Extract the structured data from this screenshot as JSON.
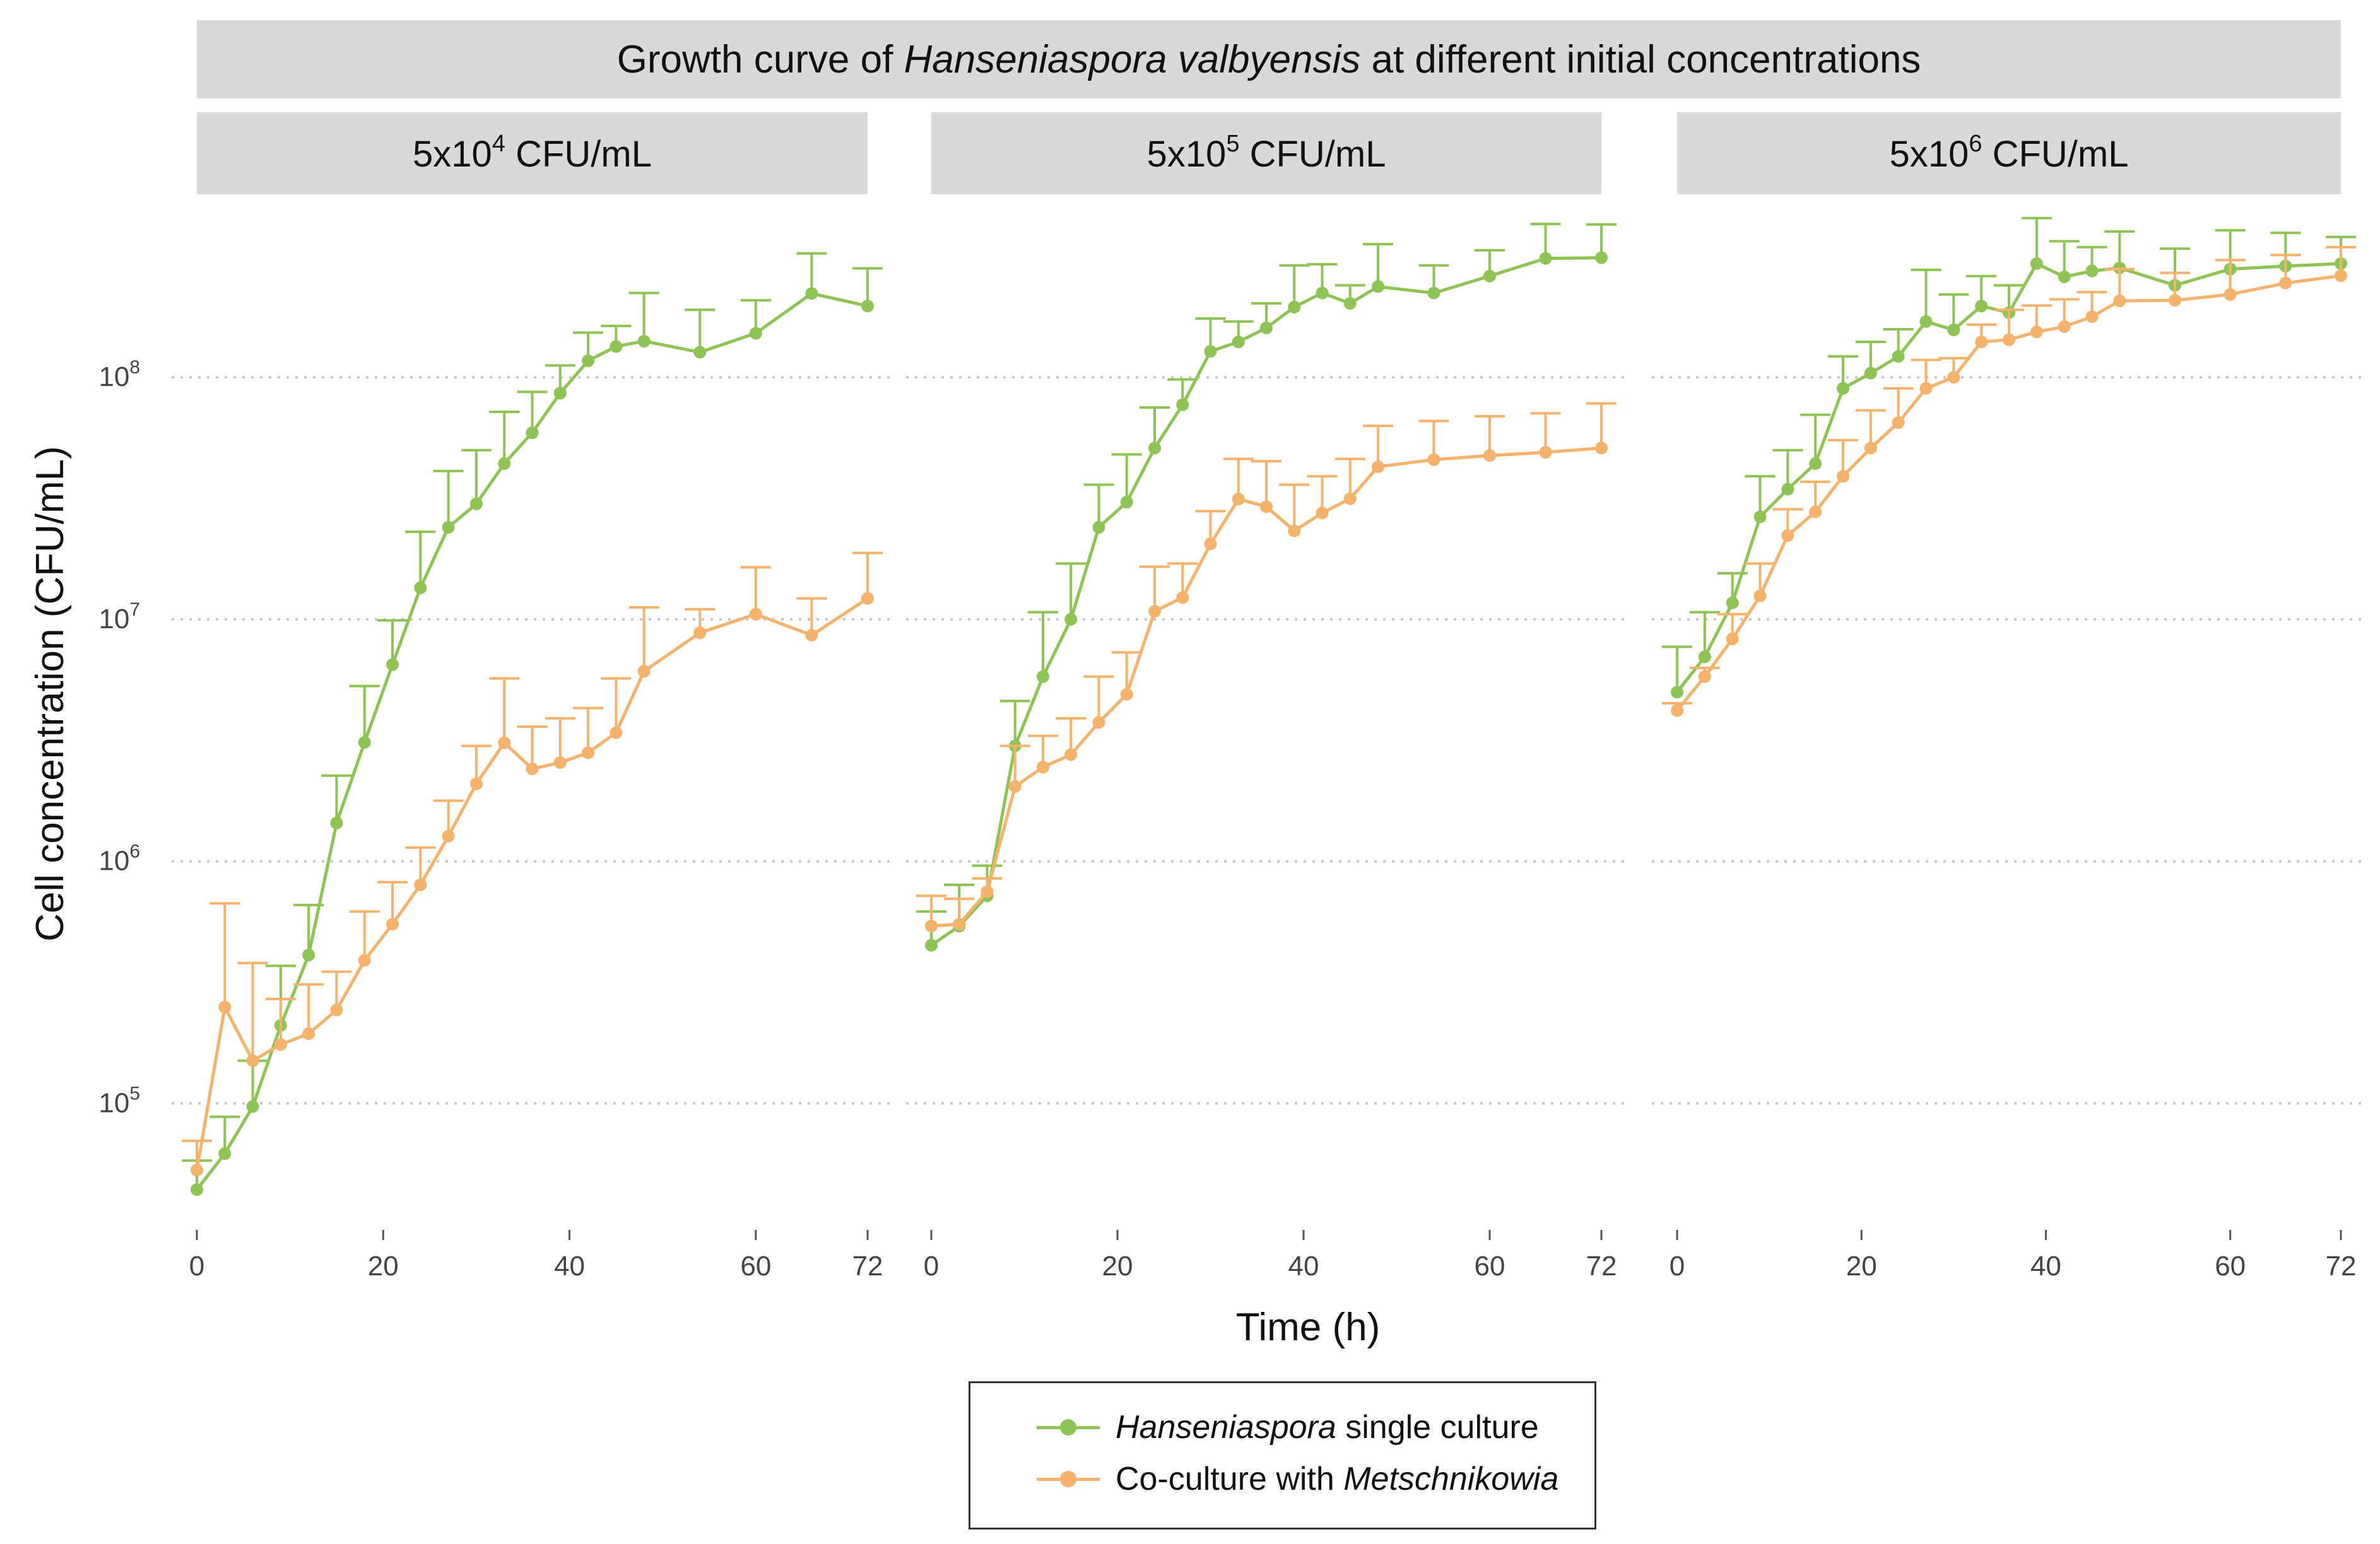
{
  "figure": {
    "title_prefix": "Growth curve of ",
    "title_species": "Hanseniaspora valbyensis",
    "title_suffix": " at different initial concentrations",
    "y_axis_label": "Cell concentration (CFU/mL)",
    "x_axis_label": "Time (h)"
  },
  "legend": {
    "single": {
      "species": "Hanseniaspora",
      "rest": " single culture",
      "color": "#8dc454"
    },
    "coculture": {
      "prefix": "Co-culture with ",
      "species": "Metschnikowia",
      "color": "#f5b26b"
    }
  },
  "chart_data": {
    "type": "line",
    "title": "Growth curve of Hanseniaspora valbyensis at different initial concentrations",
    "xlabel": "Time (h)",
    "ylabel": "Cell concentration (CFU/mL)",
    "y_scale": "log10",
    "ylim": [
      30000,
      500000000
    ],
    "xlim": [
      0,
      72
    ],
    "x_ticks": [
      0,
      20,
      40,
      60,
      72
    ],
    "y_ticks": [
      {
        "value": 100000,
        "base": "10",
        "exp": "5"
      },
      {
        "value": 1000000,
        "base": "10",
        "exp": "6"
      },
      {
        "value": 10000000,
        "base": "10",
        "exp": "7"
      },
      {
        "value": 100000000,
        "base": "10",
        "exp": "8"
      }
    ],
    "grid": "horizontal dotted",
    "error_bars": "upper only",
    "legend_position": "bottom-center",
    "panels": [
      {
        "strip_prefix": "5x10",
        "strip_exp": "4",
        "strip_suffix": " CFU/mL",
        "series": [
          {
            "name": "Hanseniaspora single culture",
            "color": "#8dc454",
            "x": [
              0,
              3,
              6,
              9,
              12,
              15,
              18,
              21,
              24,
              27,
              30,
              33,
              36,
              39,
              42,
              45,
              48,
              54,
              60,
              66,
              72
            ],
            "y": [
              44000,
              62000,
              97000,
              210000,
              410000,
              1440000,
              3100000,
              6500000,
              13500000,
              24000000,
              30000000,
              44000000,
              59000000,
              86000000,
              117000000,
              134000000,
              141000000,
              127000000,
              152000000,
              222000000,
              197000000
            ],
            "err_upper": [
              58000,
              88000,
              150000,
              370000,
              660000,
              2260000,
              5300000,
              9900000,
              23000000,
              41000000,
              50000000,
              72000000,
              87000000,
              112000000,
              153000000,
              163000000,
              223000000,
              190000000,
              208000000,
              325000000,
              282000000
            ]
          },
          {
            "name": "Co-culture with Metschnikowia",
            "color": "#f5b26b",
            "x": [
              0,
              3,
              6,
              9,
              12,
              15,
              18,
              21,
              24,
              27,
              30,
              33,
              36,
              39,
              42,
              45,
              48,
              54,
              60,
              66,
              72
            ],
            "y": [
              53000,
              250000,
              150000,
              175000,
              194000,
              243000,
              390000,
              550000,
              800000,
              1270000,
              2090000,
              3090000,
              2410000,
              2560000,
              2810000,
              3400000,
              6100000,
              8800000,
              10500000,
              8600000,
              12200000
            ],
            "err_upper": [
              70000,
              670000,
              380000,
              270000,
              310000,
              350000,
              620000,
              820000,
              1140000,
              1780000,
              3000000,
              5700000,
              3600000,
              3900000,
              4300000,
              5700000,
              11200000,
              11000000,
              16400000,
              12200000,
              18800000
            ]
          }
        ]
      },
      {
        "strip_prefix": "5x10",
        "strip_exp": "5",
        "strip_suffix": " CFU/mL",
        "series": [
          {
            "name": "Hanseniaspora single culture",
            "color": "#8dc454",
            "x": [
              0,
              3,
              6,
              9,
              12,
              15,
              18,
              21,
              24,
              27,
              30,
              33,
              36,
              39,
              42,
              45,
              48,
              54,
              60,
              66,
              72
            ],
            "y": [
              450000,
              540000,
              720000,
              3000000,
              5800000,
              10000000,
              24000000,
              30500000,
              51000000,
              77000000,
              128000000,
              140000000,
              160000000,
              195000000,
              223000000,
              202000000,
              237000000,
              223000000,
              262000000,
              310000000,
              312000000
            ],
            "err_upper": [
              620000,
              800000,
              960000,
              4600000,
              10700000,
              17000000,
              36000000,
              48000000,
              75000000,
              98000000,
              175000000,
              170000000,
              202000000,
              290000000,
              293000000,
              240000000,
              355000000,
              290000000,
              335000000,
              430000000,
              428000000
            ]
          },
          {
            "name": "Co-culture with Metschnikowia",
            "color": "#f5b26b",
            "x": [
              0,
              3,
              6,
              9,
              12,
              15,
              18,
              21,
              24,
              27,
              30,
              33,
              36,
              39,
              42,
              45,
              48,
              54,
              60,
              66,
              72
            ],
            "y": [
              540000,
              550000,
              750000,
              2040000,
              2450000,
              2760000,
              3750000,
              4900000,
              10800000,
              12300000,
              20500000,
              31400000,
              29200000,
              23200000,
              27500000,
              31500000,
              42700000,
              45700000,
              47500000,
              49000000,
              51000000
            ],
            "err_upper": [
              720000,
              700000,
              850000,
              3000000,
              3300000,
              3900000,
              5800000,
              7300000,
              16500000,
              17000000,
              28000000,
              46000000,
              45000000,
              36000000,
              39000000,
              46000000,
              63000000,
              66000000,
              69000000,
              71000000,
              78000000
            ]
          }
        ]
      },
      {
        "strip_prefix": "5x10",
        "strip_exp": "6",
        "strip_suffix": " CFU/mL",
        "series": [
          {
            "name": "Hanseniaspora single culture",
            "color": "#8dc454",
            "x": [
              0,
              3,
              6,
              9,
              12,
              15,
              18,
              21,
              24,
              27,
              30,
              33,
              36,
              39,
              42,
              45,
              48,
              54,
              60,
              66,
              72
            ],
            "y": [
              5000000,
              7000000,
              11700000,
              26500000,
              34500000,
              44000000,
              90000000,
              104000000,
              122000000,
              170000000,
              157000000,
              197000000,
              185000000,
              295000000,
              260000000,
              275000000,
              283000000,
              240000000,
              280000000,
              288000000,
              295000000
            ],
            "err_upper": [
              7700000,
              10700000,
              15500000,
              39000000,
              50000000,
              70000000,
              122000000,
              140000000,
              158000000,
              278000000,
              220000000,
              262000000,
              240000000,
              455000000,
              365000000,
              345000000,
              400000000,
              340000000,
              405000000,
              395000000,
              380000000
            ]
          },
          {
            "name": "Co-culture with Metschnikowia",
            "color": "#f5b26b",
            "x": [
              0,
              3,
              6,
              9,
              12,
              15,
              18,
              21,
              24,
              27,
              30,
              33,
              36,
              39,
              42,
              45,
              48,
              54,
              60,
              66,
              72
            ],
            "y": [
              4200000,
              5800000,
              8300000,
              12500000,
              22200000,
              27800000,
              39000000,
              51000000,
              65000000,
              90000000,
              100000000,
              140000000,
              143000000,
              154000000,
              162000000,
              178000000,
              207000000,
              208000000,
              220000000,
              245000000,
              263000000
            ],
            "err_upper": [
              4500000,
              6300000,
              10500000,
              17000000,
              28500000,
              37000000,
              55000000,
              73000000,
              90000000,
              118000000,
              120000000,
              165000000,
              190000000,
              198000000,
              210000000,
              225000000,
              280000000,
              270000000,
              305000000,
              320000000,
              345000000
            ]
          }
        ]
      }
    ]
  }
}
